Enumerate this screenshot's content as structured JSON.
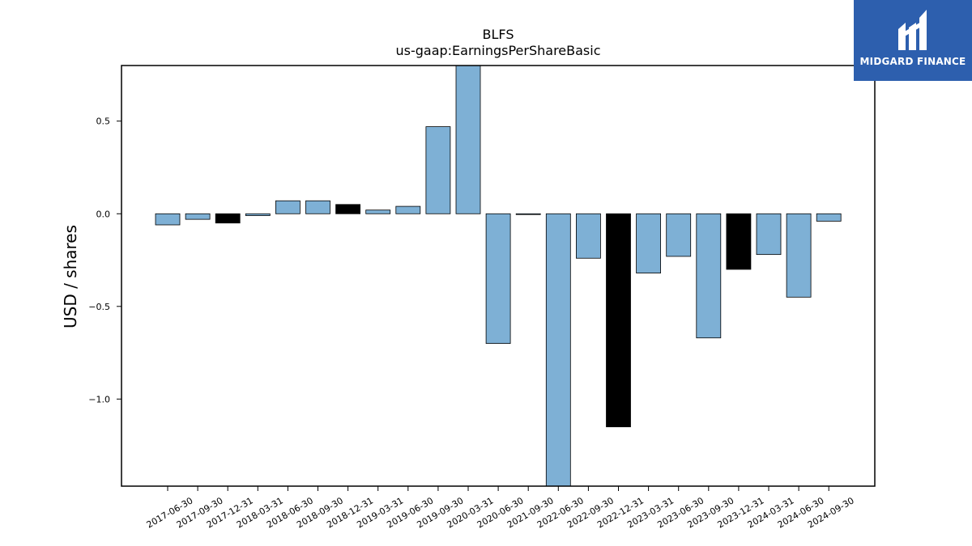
{
  "chart_data": {
    "type": "bar",
    "title": "BLFS",
    "subtitle": "us-gaap:EarningsPerShareBasic",
    "xlabel": "",
    "ylabel": "USD / shares",
    "ylim": [
      -1.47,
      0.8
    ],
    "yticks": [
      0.5,
      0.0,
      -0.5,
      -1.0
    ],
    "ytick_labels": [
      "0.5",
      "0.0",
      "−0.5",
      "−1.0"
    ],
    "grid": false,
    "categories": [
      "2017-06-30",
      "2017-09-30",
      "2017-12-31",
      "2018-03-31",
      "2018-06-30",
      "2018-09-30",
      "2018-12-31",
      "2019-03-31",
      "2019-06-30",
      "2019-09-30",
      "2020-03-31",
      "2020-06-30",
      "2021-09-30",
      "2022-06-30",
      "2022-09-30",
      "2022-12-31",
      "2023-03-31",
      "2023-06-30",
      "2023-09-30",
      "2023-12-31",
      "2024-03-31",
      "2024-06-30",
      "2024-09-30"
    ],
    "values": [
      -0.06,
      -0.03,
      -0.05,
      -0.01,
      0.07,
      0.07,
      0.05,
      0.02,
      0.04,
      0.47,
      0.85,
      -0.7,
      0.0,
      -1.5,
      -0.24,
      -1.15,
      -0.32,
      -0.23,
      -0.67,
      -0.3,
      -0.22,
      -0.45,
      -0.04
    ],
    "bar_colors": [
      "#7eb0d5",
      "#7eb0d5",
      "#000000",
      "#7eb0d5",
      "#7eb0d5",
      "#7eb0d5",
      "#000000",
      "#7eb0d5",
      "#7eb0d5",
      "#7eb0d5",
      "#7eb0d5",
      "#7eb0d5",
      "#7eb0d5",
      "#7eb0d5",
      "#7eb0d5",
      "#000000",
      "#7eb0d5",
      "#7eb0d5",
      "#7eb0d5",
      "#000000",
      "#7eb0d5",
      "#7eb0d5",
      "#7eb0d5"
    ]
  },
  "logo": {
    "text": "MIDGARD FINANCE",
    "background": "#2d5fae"
  }
}
